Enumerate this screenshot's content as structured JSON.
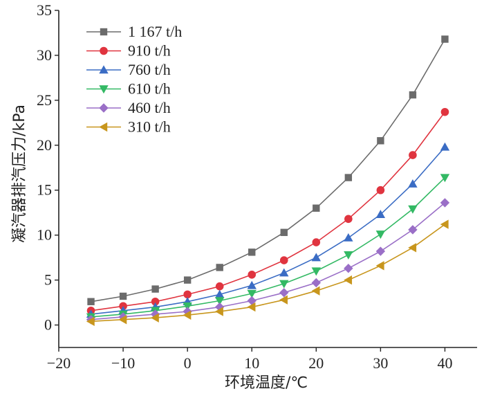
{
  "chart_data": {
    "type": "line",
    "title": "",
    "xlabel": "环境温度/℃",
    "ylabel": "凝汽器排汽压力/kPa",
    "xlim": [
      -20,
      45
    ],
    "ylim": [
      -2.5,
      35
    ],
    "xticks": [
      -20,
      -10,
      0,
      10,
      20,
      30,
      40
    ],
    "yticks": [
      0,
      5,
      10,
      15,
      20,
      25,
      30,
      35
    ],
    "grid": false,
    "legend_position": "top-left",
    "x": [
      -15,
      -10,
      -5,
      0,
      5,
      10,
      15,
      20,
      25,
      30,
      35,
      40
    ],
    "series": [
      {
        "name": "1 167 t/h",
        "marker": "square",
        "color": "#6b6b6b",
        "values": [
          2.6,
          3.2,
          4.0,
          5.0,
          6.4,
          8.1,
          10.3,
          13.0,
          16.4,
          20.5,
          25.6,
          31.8
        ]
      },
      {
        "name": "910 t/h",
        "marker": "circle",
        "color": "#e0343f",
        "values": [
          1.6,
          2.1,
          2.6,
          3.4,
          4.3,
          5.6,
          7.2,
          9.2,
          11.8,
          15.0,
          18.9,
          23.7
        ]
      },
      {
        "name": "760 t/h",
        "marker": "triangle-up",
        "color": "#3a6cc4",
        "values": [
          1.2,
          1.6,
          2.0,
          2.6,
          3.4,
          4.4,
          5.8,
          7.5,
          9.7,
          12.3,
          15.7,
          19.8
        ]
      },
      {
        "name": "610 t/h",
        "marker": "triangle-down",
        "color": "#33b964",
        "values": [
          0.9,
          1.2,
          1.6,
          2.1,
          2.7,
          3.5,
          4.6,
          6.0,
          7.8,
          10.1,
          12.9,
          16.4
        ]
      },
      {
        "name": "460 t/h",
        "marker": "diamond",
        "color": "#9a6fc7",
        "values": [
          0.6,
          0.9,
          1.2,
          1.5,
          2.0,
          2.7,
          3.6,
          4.7,
          6.3,
          8.2,
          10.6,
          13.6
        ]
      },
      {
        "name": "310 t/h",
        "marker": "triangle-left",
        "color": "#c8961d",
        "values": [
          0.4,
          0.6,
          0.8,
          1.1,
          1.5,
          2.0,
          2.8,
          3.8,
          5.0,
          6.6,
          8.6,
          11.2
        ]
      }
    ]
  }
}
